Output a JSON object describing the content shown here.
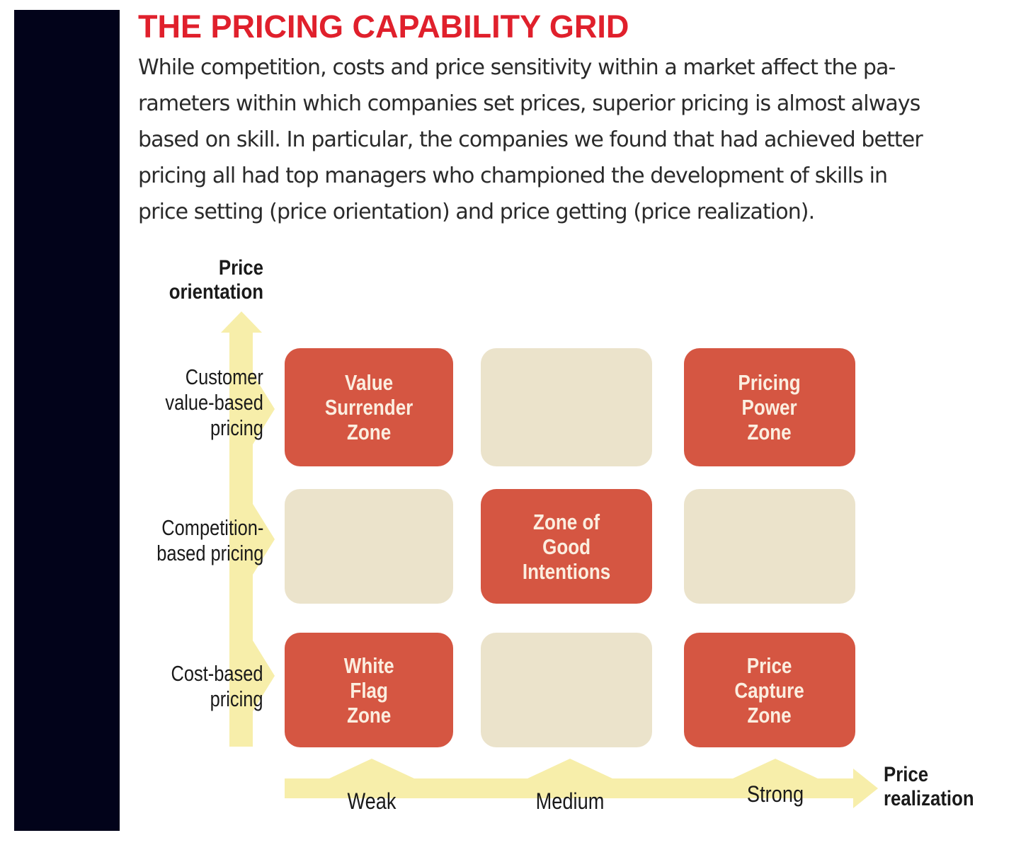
{
  "title": "THE PRICING CAPABILITY GRID",
  "intro_lines": [
    "While competition, costs and price sensitivity within a market affect the pa-",
    "rameters within which companies set prices, superior pricing is almost always",
    "based on skill. In particular, the companies we found that had achieved better",
    "pricing all had top managers who championed the development of skills in",
    "price setting (price orientation) and price getting (price realization)."
  ],
  "colors": {
    "title": "#e0202c",
    "sidebar": "#02031a",
    "zone_red": "#d55642",
    "zone_beige": "#ebe3cb",
    "arrow": "#f7eeaa"
  },
  "y_axis": {
    "title_lines": [
      "Price",
      "orientation"
    ],
    "levels": [
      {
        "lines": [
          "Customer",
          "value-based",
          "pricing"
        ]
      },
      {
        "lines": [
          "Competition-",
          "based pricing"
        ]
      },
      {
        "lines": [
          "Cost-based",
          "pricing"
        ]
      }
    ]
  },
  "x_axis": {
    "title_lines": [
      "Price",
      "realization"
    ],
    "levels": [
      "Weak",
      "Medium",
      "Strong"
    ]
  },
  "grid": [
    [
      {
        "highlight": true,
        "lines": [
          "Value",
          "Surrender",
          "Zone"
        ]
      },
      {
        "highlight": false,
        "lines": []
      },
      {
        "highlight": true,
        "lines": [
          "Pricing",
          "Power",
          "Zone"
        ]
      }
    ],
    [
      {
        "highlight": false,
        "lines": []
      },
      {
        "highlight": true,
        "lines": [
          "Zone of",
          "Good",
          "Intentions"
        ]
      },
      {
        "highlight": false,
        "lines": []
      }
    ],
    [
      {
        "highlight": true,
        "lines": [
          "White",
          "Flag",
          "Zone"
        ]
      },
      {
        "highlight": false,
        "lines": []
      },
      {
        "highlight": true,
        "lines": [
          "Price",
          "Capture",
          "Zone"
        ]
      }
    ]
  ]
}
